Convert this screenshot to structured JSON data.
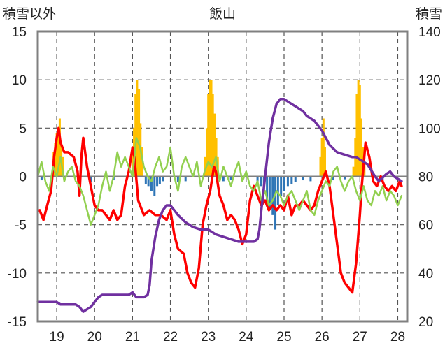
{
  "chart_data": {
    "type": "line",
    "title": "飯山",
    "ylabel_left": "積雪以外",
    "ylabel_right": "積雪",
    "xlim": [
      18.5,
      28.25
    ],
    "ylim_left": [
      -15,
      15
    ],
    "ylim_right": [
      20,
      140
    ],
    "x_ticks": [
      19,
      20,
      21,
      22,
      23,
      24,
      25,
      26,
      27,
      28
    ],
    "x_tick_labels": [
      "19",
      "20",
      "21",
      "22",
      "23",
      "24",
      "25",
      "26",
      "27",
      "28"
    ],
    "y_left_ticks": [
      15,
      10,
      5,
      0,
      -5,
      -10,
      -15
    ],
    "y_left_tick_labels": [
      "15",
      "10",
      "5",
      "0",
      "-5",
      "-10",
      "-15"
    ],
    "y_right_ticks": [
      140,
      120,
      100,
      80,
      60,
      40,
      20
    ],
    "y_right_tick_labels": [
      "140",
      "120",
      "100",
      "80",
      "60",
      "40",
      "20"
    ],
    "grid": true,
    "colors": {
      "snow_depth": "#7030a0",
      "temperature": "#ff0000",
      "green_series": "#92d050",
      "increase_bars": "#ffc000",
      "decrease_bars": "#2e75b6",
      "frame": "#808080"
    },
    "bars_positive": [
      {
        "x": 18.92,
        "v": 2.5
      },
      {
        "x": 18.96,
        "v": 3.5
      },
      {
        "x": 19.0,
        "v": 4.5
      },
      {
        "x": 19.04,
        "v": 5.0
      },
      {
        "x": 19.08,
        "v": 6.0
      },
      {
        "x": 19.12,
        "v": 3.5
      },
      {
        "x": 19.17,
        "v": 2.0
      },
      {
        "x": 21.0,
        "v": 2.5
      },
      {
        "x": 21.04,
        "v": 5.0
      },
      {
        "x": 21.08,
        "v": 8.5
      },
      {
        "x": 21.12,
        "v": 10.0
      },
      {
        "x": 21.17,
        "v": 9.0
      },
      {
        "x": 21.21,
        "v": 5.5
      },
      {
        "x": 21.25,
        "v": 3.0
      },
      {
        "x": 22.92,
        "v": 2.0
      },
      {
        "x": 22.96,
        "v": 5.0
      },
      {
        "x": 23.0,
        "v": 8.5
      },
      {
        "x": 23.04,
        "v": 10.0
      },
      {
        "x": 23.08,
        "v": 10.0
      },
      {
        "x": 23.12,
        "v": 8.5
      },
      {
        "x": 23.17,
        "v": 6.5
      },
      {
        "x": 23.21,
        "v": 4.0
      },
      {
        "x": 23.25,
        "v": 2.0
      },
      {
        "x": 25.96,
        "v": 2.0
      },
      {
        "x": 26.0,
        "v": 4.0
      },
      {
        "x": 26.04,
        "v": 6.0
      },
      {
        "x": 26.08,
        "v": 3.0
      },
      {
        "x": 26.83,
        "v": 1.0
      },
      {
        "x": 26.88,
        "v": 4.0
      },
      {
        "x": 26.92,
        "v": 8.5
      },
      {
        "x": 26.96,
        "v": 10.0
      },
      {
        "x": 27.0,
        "v": 9.5
      },
      {
        "x": 27.04,
        "v": 6.0
      },
      {
        "x": 27.08,
        "v": 3.0
      },
      {
        "x": 27.12,
        "v": 1.5
      }
    ],
    "bars_negative": [
      {
        "x": 18.6,
        "v": -0.4
      },
      {
        "x": 19.6,
        "v": -0.5
      },
      {
        "x": 19.9,
        "v": -0.6
      },
      {
        "x": 20.5,
        "v": -0.4
      },
      {
        "x": 21.35,
        "v": -0.8
      },
      {
        "x": 21.42,
        "v": -1.0
      },
      {
        "x": 21.5,
        "v": -1.5
      },
      {
        "x": 21.58,
        "v": -2.0
      },
      {
        "x": 21.65,
        "v": -1.0
      },
      {
        "x": 21.72,
        "v": -0.8
      },
      {
        "x": 21.8,
        "v": -0.5
      },
      {
        "x": 22.2,
        "v": -0.6
      },
      {
        "x": 22.4,
        "v": -0.5
      },
      {
        "x": 23.4,
        "v": -0.5
      },
      {
        "x": 23.6,
        "v": -0.4
      },
      {
        "x": 24.3,
        "v": -0.6
      },
      {
        "x": 24.4,
        "v": -1.0
      },
      {
        "x": 24.47,
        "v": -1.5
      },
      {
        "x": 24.55,
        "v": -2.5
      },
      {
        "x": 24.62,
        "v": -3.5
      },
      {
        "x": 24.7,
        "v": -4.0
      },
      {
        "x": 24.77,
        "v": -5.5
      },
      {
        "x": 24.84,
        "v": -3.0
      },
      {
        "x": 24.92,
        "v": -2.0
      },
      {
        "x": 25.0,
        "v": -1.5
      },
      {
        "x": 25.1,
        "v": -1.0
      },
      {
        "x": 25.2,
        "v": -0.8
      },
      {
        "x": 25.3,
        "v": -0.6
      },
      {
        "x": 25.5,
        "v": -0.4
      },
      {
        "x": 25.7,
        "v": -0.5
      },
      {
        "x": 26.3,
        "v": -0.4
      },
      {
        "x": 26.6,
        "v": -0.3
      },
      {
        "x": 27.6,
        "v": -0.4
      }
    ],
    "series": [
      {
        "axis": "left",
        "color": "#ff0000",
        "width": 3.5,
        "x": [
          18.55,
          18.65,
          18.75,
          18.85,
          18.93,
          19.0,
          19.05,
          19.1,
          19.2,
          19.3,
          19.45,
          19.55,
          19.6,
          19.65,
          19.7,
          19.8,
          19.9,
          20.0,
          20.1,
          20.2,
          20.3,
          20.4,
          20.5,
          20.6,
          20.7,
          20.8,
          20.9,
          21.0,
          21.05,
          21.15,
          21.3,
          21.45,
          21.6,
          21.75,
          21.9,
          22.0,
          22.1,
          22.2,
          22.35,
          22.45,
          22.55,
          22.65,
          22.75,
          22.85,
          22.95,
          23.05,
          23.15,
          23.2,
          23.3,
          23.4,
          23.5,
          23.6,
          23.7,
          23.8,
          23.9,
          24.0,
          24.1,
          24.2,
          24.3,
          24.4,
          24.5,
          24.6,
          24.7,
          24.8,
          24.9,
          25.0,
          25.1,
          25.2,
          25.3,
          25.4,
          25.5,
          25.6,
          25.7,
          25.8,
          25.9,
          26.0,
          26.1,
          26.2,
          26.3,
          26.4,
          26.5,
          26.6,
          26.7,
          26.8,
          26.9,
          27.0,
          27.05,
          27.15,
          27.25,
          27.35,
          27.45,
          27.55,
          27.65,
          27.75,
          27.85,
          27.95,
          28.05,
          28.1
        ],
        "y": [
          -3.5,
          -4.5,
          -3.0,
          -1.5,
          2.0,
          4.0,
          5.0,
          3.5,
          2.5,
          2.5,
          2.0,
          0.5,
          -2.0,
          2.0,
          4.0,
          1.0,
          -1.0,
          -3.0,
          -3.5,
          -3.5,
          -4.0,
          -4.5,
          -3.5,
          -4.5,
          -4.0,
          -1.0,
          0.5,
          3.0,
          2.0,
          -2.5,
          -4.0,
          -3.5,
          -4.0,
          -4.0,
          -4.5,
          -3.5,
          -6.0,
          -7.5,
          -8.0,
          -10.0,
          -11.0,
          -11.5,
          -9.5,
          -5.0,
          -3.0,
          -1.5,
          1.0,
          0.5,
          -2.0,
          -3.0,
          -4.5,
          -4.0,
          -4.5,
          -5.5,
          -7.0,
          -6.0,
          -2.5,
          -1.0,
          -2.0,
          -3.0,
          -2.5,
          -3.5,
          -3.0,
          -3.5,
          -3.0,
          -3.5,
          -2.0,
          -4.0,
          -3.0,
          -3.0,
          -2.5,
          -3.0,
          -3.5,
          -3.0,
          -1.5,
          -0.5,
          0.5,
          -1.0,
          -4.0,
          -7.0,
          -10.0,
          -11.0,
          -11.5,
          -12.0,
          -9.0,
          -4.0,
          -1.0,
          3.5,
          2.0,
          -0.5,
          -1.0,
          0.0,
          -1.0,
          -1.5,
          -1.0,
          -1.5,
          -0.5,
          -1.0
        ]
      },
      {
        "axis": "left",
        "color": "#92d050",
        "width": 2.5,
        "x": [
          18.5,
          18.6,
          18.7,
          18.8,
          18.9,
          19.0,
          19.1,
          19.2,
          19.3,
          19.4,
          19.5,
          19.6,
          19.7,
          19.8,
          19.9,
          20.0,
          20.1,
          20.2,
          20.3,
          20.4,
          20.5,
          20.6,
          20.7,
          20.8,
          20.9,
          21.0,
          21.1,
          21.2,
          21.3,
          21.4,
          21.5,
          21.6,
          21.7,
          21.8,
          21.9,
          22.0,
          22.1,
          22.2,
          22.3,
          22.4,
          22.5,
          22.6,
          22.7,
          22.8,
          22.9,
          23.0,
          23.1,
          23.2,
          23.3,
          23.4,
          23.5,
          23.6,
          23.7,
          23.8,
          23.9,
          24.0,
          24.1,
          24.2,
          24.3,
          24.4,
          24.5,
          24.6,
          24.7,
          24.8,
          24.9,
          25.0,
          25.1,
          25.2,
          25.3,
          25.4,
          25.5,
          25.6,
          25.7,
          25.8,
          25.9,
          26.0,
          26.1,
          26.2,
          26.3,
          26.4,
          26.5,
          26.6,
          26.7,
          26.8,
          26.9,
          27.0,
          27.1,
          27.2,
          27.3,
          27.4,
          27.5,
          27.6,
          27.7,
          27.8,
          27.9,
          28.0,
          28.1
        ],
        "y": [
          0.0,
          1.5,
          -0.5,
          -1.5,
          1.0,
          0.0,
          2.0,
          -0.5,
          0.5,
          1.0,
          -0.5,
          -1.0,
          -2.0,
          -3.5,
          -5.0,
          -4.0,
          -3.0,
          -1.0,
          0.5,
          -1.5,
          0.0,
          2.5,
          1.0,
          2.0,
          1.0,
          0.0,
          4.0,
          3.0,
          1.0,
          0.0,
          -0.5,
          1.0,
          2.0,
          0.5,
          1.0,
          3.0,
          0.0,
          -1.5,
          1.0,
          2.0,
          1.0,
          0.0,
          1.5,
          -1.0,
          0.5,
          1.5,
          1.0,
          2.0,
          -0.5,
          1.0,
          0.0,
          -1.0,
          0.5,
          1.5,
          -0.5,
          0.5,
          -1.0,
          -1.5,
          -0.5,
          -2.5,
          -1.5,
          -3.0,
          -2.5,
          -1.5,
          -2.0,
          -3.0,
          -2.0,
          -1.5,
          -2.5,
          -3.5,
          -2.5,
          -1.5,
          -3.5,
          -4.0,
          -2.5,
          -1.5,
          -0.5,
          -1.0,
          0.5,
          1.0,
          -0.5,
          -1.5,
          -0.5,
          0.0,
          -1.5,
          -2.5,
          -1.0,
          -2.5,
          -3.0,
          -1.5,
          -2.0,
          -1.0,
          -2.5,
          -1.5,
          -2.0,
          -3.0,
          -2.0
        ]
      },
      {
        "axis": "right",
        "color": "#7030a0",
        "width": 3.5,
        "x": [
          18.5,
          18.9,
          19.0,
          19.1,
          19.5,
          19.6,
          19.7,
          19.8,
          19.9,
          19.95,
          20.0,
          20.1,
          20.2,
          20.9,
          21.0,
          21.1,
          21.2,
          21.3,
          21.4,
          21.45,
          21.5,
          21.6,
          21.7,
          21.8,
          21.9,
          22.0,
          22.1,
          22.2,
          22.4,
          22.6,
          22.8,
          23.0,
          23.2,
          23.4,
          23.6,
          23.8,
          24.0,
          24.2,
          24.3,
          24.35,
          24.4,
          24.5,
          24.6,
          24.7,
          24.8,
          24.9,
          25.0,
          25.1,
          25.2,
          25.3,
          25.5,
          25.6,
          25.7,
          25.8,
          25.9,
          26.0,
          26.1,
          26.2,
          26.4,
          26.6,
          26.8,
          26.9,
          27.0,
          27.1,
          27.2,
          27.4,
          27.5,
          27.7,
          27.8,
          27.9,
          28.0,
          28.1
        ],
        "y": [
          28,
          28,
          28,
          27,
          27,
          26,
          24,
          25,
          26,
          27,
          28,
          30,
          31,
          31,
          32,
          30,
          30,
          30,
          31,
          35,
          45,
          55,
          62,
          66,
          68,
          68,
          66,
          64,
          61,
          59,
          58,
          58,
          56,
          55,
          54,
          53,
          53,
          53,
          54,
          58,
          66,
          80,
          94,
          104,
          110,
          112,
          112,
          111,
          110,
          109,
          107,
          105,
          104,
          103,
          101,
          99,
          96,
          93,
          90,
          89,
          88,
          88,
          87,
          86,
          85,
          80,
          78,
          81,
          82,
          80,
          79,
          78
        ]
      }
    ]
  }
}
